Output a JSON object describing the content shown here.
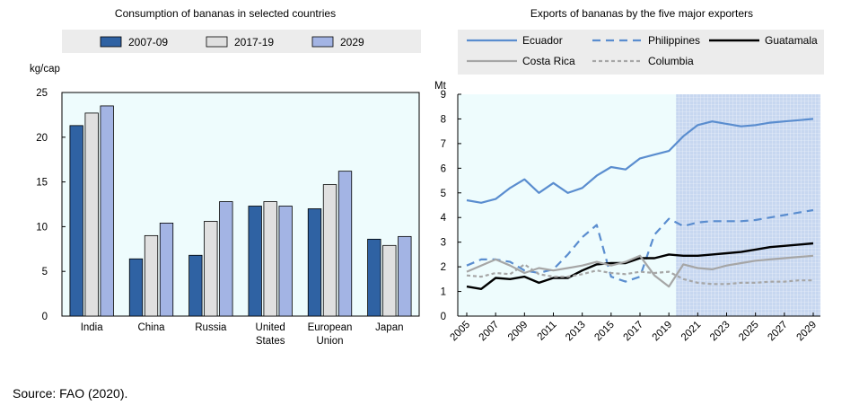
{
  "source_note": "Source: FAO (2020).",
  "colors": {
    "series_2007_09": "#2f62a3",
    "series_2017_19": "#e0e0e0",
    "series_2029": "#a3b4e4",
    "plot_bg": "#eefcfd",
    "legend_bg": "#ececec",
    "projection_bg": "#c7d7f0",
    "ecuador": "#5a8dcf",
    "philippines": "#5a8dcf",
    "guatemala": "#000000",
    "costa_rica": "#a6a6a6",
    "columbia": "#a6a6a6"
  },
  "chart_data": [
    {
      "type": "bar",
      "title": "Consumption of bananas in selected countries",
      "ylabel": "kg/cap",
      "xlabel": "",
      "ylim": [
        0,
        25
      ],
      "yticks": [
        "0",
        "5",
        "10",
        "15",
        "20",
        "25"
      ],
      "yticks_values": [
        0,
        5,
        10,
        15,
        20,
        25
      ],
      "grid": false,
      "legend_position": "top",
      "categories": [
        [
          "India"
        ],
        [
          "China"
        ],
        [
          "Russia"
        ],
        [
          "United",
          "States"
        ],
        [
          "European",
          "Union"
        ],
        [
          "Japan"
        ]
      ],
      "series": [
        {
          "name": "2007-09",
          "values": [
            21.3,
            6.4,
            6.8,
            12.3,
            12.0,
            8.6
          ]
        },
        {
          "name": "2017-19",
          "values": [
            22.7,
            9.0,
            10.6,
            12.8,
            14.7,
            7.9
          ]
        },
        {
          "name": "2029",
          "values": [
            23.5,
            10.4,
            12.8,
            12.3,
            16.2,
            8.9
          ]
        }
      ]
    },
    {
      "type": "line",
      "title": "Exports of bananas by the five major exporters",
      "ylabel": "Mt",
      "xlabel": "",
      "ylim": [
        0,
        9
      ],
      "xlim": [
        2005,
        2029
      ],
      "yticks": [
        "0",
        "1",
        "2",
        "3",
        "4",
        "5",
        "6",
        "7",
        "8",
        "9"
      ],
      "yticks_values": [
        0,
        1,
        2,
        3,
        4,
        5,
        6,
        7,
        8,
        9
      ],
      "xticks": [
        "2005",
        "2007",
        "2009",
        "2011",
        "2013",
        "2015",
        "2017",
        "2019",
        "2021",
        "2023",
        "2025",
        "2027",
        "2029"
      ],
      "xticks_values": [
        2005,
        2007,
        2009,
        2011,
        2013,
        2015,
        2017,
        2019,
        2021,
        2023,
        2025,
        2027,
        2029
      ],
      "projection_range": [
        2020,
        2029
      ],
      "grid": false,
      "legend_position": "top",
      "series": [
        {
          "name": "Ecuador",
          "style": "solid",
          "x": [
            2005,
            2006,
            2007,
            2008,
            2009,
            2010,
            2011,
            2012,
            2013,
            2014,
            2015,
            2016,
            2017,
            2018,
            2019,
            2020,
            2021,
            2022,
            2023,
            2024,
            2025,
            2026,
            2027,
            2028,
            2029
          ],
          "values": [
            4.7,
            4.6,
            4.75,
            5.2,
            5.55,
            5.0,
            5.4,
            5.0,
            5.2,
            5.7,
            6.05,
            5.95,
            6.4,
            6.55,
            6.7,
            7.3,
            7.75,
            7.9,
            7.8,
            7.7,
            7.75,
            7.85,
            7.9,
            7.95,
            8.0
          ]
        },
        {
          "name": "Philippines",
          "style": "dashed",
          "x": [
            2005,
            2006,
            2007,
            2008,
            2009,
            2010,
            2011,
            2012,
            2013,
            2014,
            2015,
            2016,
            2017,
            2018,
            2019,
            2020,
            2021,
            2022,
            2023,
            2024,
            2025,
            2026,
            2027,
            2028,
            2029
          ],
          "values": [
            2.05,
            2.3,
            2.3,
            2.2,
            1.85,
            1.75,
            1.9,
            2.5,
            3.2,
            3.7,
            1.6,
            1.4,
            1.6,
            3.3,
            3.95,
            3.65,
            3.8,
            3.85,
            3.85,
            3.85,
            3.9,
            4.0,
            4.1,
            4.2,
            4.3
          ]
        },
        {
          "name": "Guatamala",
          "style": "solid",
          "x": [
            2005,
            2006,
            2007,
            2008,
            2009,
            2010,
            2011,
            2012,
            2013,
            2014,
            2015,
            2016,
            2017,
            2018,
            2019,
            2020,
            2021,
            2022,
            2023,
            2024,
            2025,
            2026,
            2027,
            2028,
            2029
          ],
          "values": [
            1.2,
            1.1,
            1.55,
            1.5,
            1.6,
            1.35,
            1.55,
            1.55,
            1.85,
            2.1,
            2.15,
            2.15,
            2.35,
            2.35,
            2.5,
            2.45,
            2.45,
            2.5,
            2.55,
            2.6,
            2.7,
            2.8,
            2.85,
            2.9,
            2.95
          ]
        },
        {
          "name": "Costa Rica",
          "style": "solid",
          "x": [
            2005,
            2006,
            2007,
            2008,
            2009,
            2010,
            2011,
            2012,
            2013,
            2014,
            2015,
            2016,
            2017,
            2018,
            2019,
            2020,
            2021,
            2022,
            2023,
            2024,
            2025,
            2026,
            2027,
            2028,
            2029
          ],
          "values": [
            1.8,
            2.05,
            2.3,
            2.05,
            1.75,
            1.95,
            1.85,
            1.95,
            2.05,
            2.2,
            2.05,
            2.2,
            2.45,
            1.65,
            1.2,
            2.1,
            1.95,
            1.9,
            2.05,
            2.15,
            2.25,
            2.3,
            2.35,
            2.4,
            2.45
          ]
        },
        {
          "name": "Columbia",
          "style": "dashed",
          "x": [
            2005,
            2006,
            2007,
            2008,
            2009,
            2010,
            2011,
            2012,
            2013,
            2014,
            2015,
            2016,
            2017,
            2018,
            2019,
            2020,
            2021,
            2022,
            2023,
            2024,
            2025,
            2026,
            2027,
            2028,
            2029
          ],
          "values": [
            1.65,
            1.6,
            1.75,
            1.7,
            2.1,
            1.7,
            1.6,
            1.6,
            1.7,
            1.85,
            1.75,
            1.7,
            1.8,
            1.75,
            1.8,
            1.5,
            1.35,
            1.3,
            1.3,
            1.35,
            1.35,
            1.4,
            1.4,
            1.45,
            1.45
          ]
        }
      ]
    }
  ]
}
